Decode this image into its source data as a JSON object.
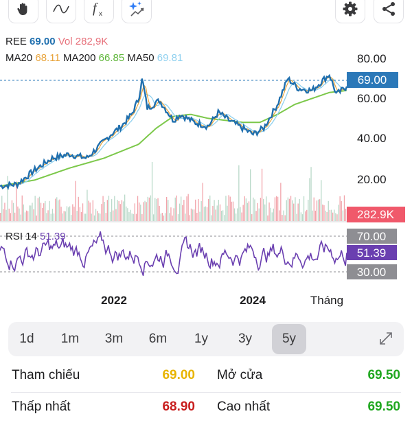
{
  "toolbar": {
    "left_icons": [
      "hand-icon",
      "wave-icon",
      "function-icon",
      "sparkle-chart-icon"
    ],
    "right_icons": [
      "gear-icon",
      "share-icon"
    ]
  },
  "legend": {
    "symbol": "REE",
    "price": "69.00",
    "vol_label": "Vol",
    "vol_value": "282,9K",
    "ma20_label": "MA20",
    "ma20_value": "68.11",
    "ma200_label": "MA200",
    "ma200_value": "66.85",
    "ma50_label": "MA50",
    "ma50_value": "69.81",
    "rsi_label": "RSI 14",
    "rsi_value": "51.39"
  },
  "colors": {
    "price_line": "#1f6fae",
    "ma20": "#e8a33a",
    "ma200": "#7cc84a",
    "ma50": "#8ed0ef",
    "rsi": "#6a3fb0",
    "vol_label": "#e7707a",
    "price_badge": "#2b78b8",
    "vol_badge": "#f0596b",
    "rsi_badge": "#6a3fb0",
    "level_badge": "#8e8e93",
    "gold": "#e8b400",
    "red": "#c81e1e",
    "green": "#1fa71f"
  },
  "chart_data": {
    "type": "line",
    "price_axis_ticks": [
      "80.00",
      "60.00",
      "40.00",
      "20.00"
    ],
    "current_price": "69.00",
    "current_volume": "282.9K",
    "rsi_levels": [
      "70.00",
      "30.00"
    ],
    "rsi_current": "51.39",
    "x_ticks": [
      "2022",
      "2024"
    ],
    "x_unit": "Tháng",
    "price_anchors": [
      [
        0,
        19
      ],
      [
        0.05,
        20
      ],
      [
        0.1,
        27
      ],
      [
        0.15,
        33
      ],
      [
        0.2,
        35
      ],
      [
        0.25,
        33
      ],
      [
        0.28,
        38
      ],
      [
        0.32,
        45
      ],
      [
        0.35,
        49
      ],
      [
        0.38,
        55
      ],
      [
        0.4,
        63
      ],
      [
        0.41,
        73
      ],
      [
        0.425,
        58
      ],
      [
        0.46,
        62
      ],
      [
        0.5,
        52
      ],
      [
        0.52,
        55
      ],
      [
        0.56,
        51
      ],
      [
        0.6,
        49
      ],
      [
        0.63,
        56
      ],
      [
        0.66,
        52
      ],
      [
        0.7,
        48
      ],
      [
        0.73,
        45
      ],
      [
        0.76,
        48
      ],
      [
        0.8,
        60
      ],
      [
        0.83,
        73
      ],
      [
        0.86,
        68
      ],
      [
        0.9,
        67
      ],
      [
        0.93,
        72
      ],
      [
        0.95,
        75
      ],
      [
        0.97,
        65
      ],
      [
        1,
        69
      ]
    ],
    "ma200_anchors": [
      [
        0,
        19
      ],
      [
        0.1,
        22
      ],
      [
        0.2,
        28
      ],
      [
        0.3,
        33
      ],
      [
        0.4,
        40
      ],
      [
        0.45,
        48
      ],
      [
        0.5,
        54
      ],
      [
        0.55,
        55
      ],
      [
        0.6,
        53
      ],
      [
        0.65,
        52
      ],
      [
        0.7,
        51
      ],
      [
        0.75,
        51
      ],
      [
        0.8,
        55
      ],
      [
        0.85,
        60
      ],
      [
        0.9,
        63
      ],
      [
        0.95,
        66
      ],
      [
        1,
        67
      ]
    ],
    "rsi_range": [
      20,
      80
    ]
  },
  "ranges": {
    "items": [
      "1d",
      "1m",
      "3m",
      "6m",
      "1y",
      "3y",
      "5y"
    ],
    "active": "5y"
  },
  "stats": {
    "row1": {
      "left_label": "Tham chiếu",
      "left_value": "69.00",
      "right_label": "Mở cửa",
      "right_value": "69.50"
    },
    "row2": {
      "left_label": "Thấp nhất",
      "left_value": "68.90",
      "right_label": "Cao nhất",
      "right_value": "69.50"
    }
  }
}
